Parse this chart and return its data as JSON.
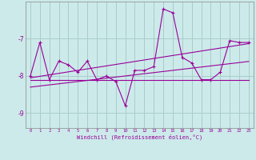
{
  "xlabel": "Windchill (Refroidissement éolien,°C)",
  "ylabel": "",
  "background_color": "#cceaea",
  "grid_color": "#aacccc",
  "line_color": "#990099",
  "x": [
    0,
    1,
    2,
    3,
    4,
    5,
    6,
    7,
    8,
    9,
    10,
    11,
    12,
    13,
    14,
    15,
    16,
    17,
    18,
    19,
    20,
    21,
    22,
    23
  ],
  "y_series1": [
    -8.0,
    -7.1,
    -8.1,
    -7.6,
    -7.7,
    -7.9,
    -7.6,
    -8.1,
    -8.0,
    -8.15,
    -8.8,
    -7.85,
    -7.85,
    -7.75,
    -6.2,
    -6.3,
    -7.5,
    -7.65,
    -8.1,
    -8.1,
    -7.9,
    -7.05,
    -7.1,
    -7.1
  ],
  "y_trend1": [
    -8.3,
    -8.27,
    -8.24,
    -8.21,
    -8.18,
    -8.15,
    -8.12,
    -8.09,
    -8.06,
    -8.03,
    -8.0,
    -7.97,
    -7.94,
    -7.91,
    -7.88,
    -7.85,
    -7.82,
    -7.79,
    -7.76,
    -7.73,
    -7.7,
    -7.67,
    -7.64,
    -7.61
  ],
  "y_trend2": [
    -8.05,
    -8.01,
    -7.97,
    -7.93,
    -7.89,
    -7.85,
    -7.81,
    -7.77,
    -7.73,
    -7.69,
    -7.65,
    -7.61,
    -7.57,
    -7.53,
    -7.49,
    -7.45,
    -7.41,
    -7.37,
    -7.33,
    -7.29,
    -7.25,
    -7.21,
    -7.17,
    -7.13
  ],
  "y_flat": [
    -8.1,
    -8.1,
    -8.1,
    -8.1,
    -8.1,
    -8.1,
    -8.1,
    -8.1,
    -8.1,
    -8.1,
    -8.1,
    -8.1,
    -8.1,
    -8.1,
    -8.1,
    -8.1,
    -8.1,
    -8.1,
    -8.1,
    -8.1,
    -8.1,
    -8.1,
    -8.1,
    -8.1
  ],
  "ylim": [
    -9.4,
    -6.0
  ],
  "xlim": [
    -0.5,
    23.5
  ],
  "yticks": [
    -9,
    -8,
    -7
  ],
  "xticks": [
    0,
    1,
    2,
    3,
    4,
    5,
    6,
    7,
    8,
    9,
    10,
    11,
    12,
    13,
    14,
    15,
    16,
    17,
    18,
    19,
    20,
    21,
    22,
    23
  ]
}
